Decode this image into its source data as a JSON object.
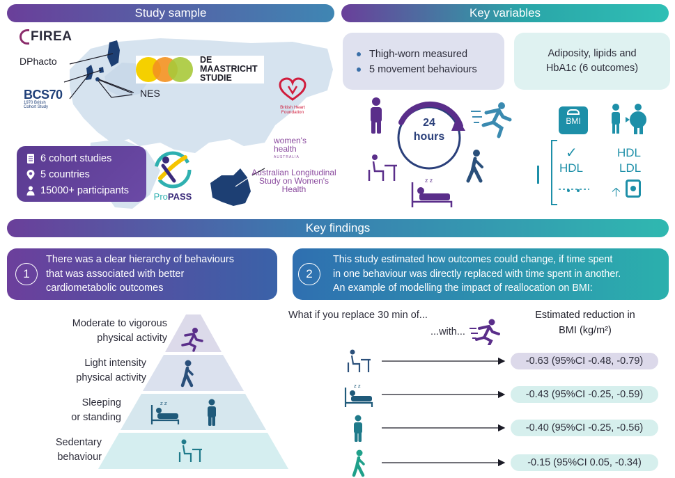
{
  "banners": {
    "study_sample": "Study sample",
    "key_variables": "Key variables",
    "key_findings": "Key findings"
  },
  "study_sample": {
    "cohort_labels": {
      "firea": "FIREA",
      "dphacto": "DPhacto",
      "bcs70": "BCS70",
      "bcs70_sub_1": "1970 British",
      "bcs70_sub_2": "Cohort Study",
      "nes": "NES",
      "maastricht_1": "DE",
      "maastricht_2": "MAASTRICHT",
      "maastricht_3": "STUDIE",
      "bhf_1": "British Heart",
      "bhf_2": "Foundation",
      "propass_pro": "Pro",
      "propass_pass": "PASS",
      "womens_health_1": "women's",
      "womens_health_2": "health",
      "womens_health_3": "AUSTRALIA",
      "alswh_1": "Australian Longitudinal",
      "alswh_2": "Study on Women's",
      "alswh_3": "Health"
    },
    "stats": [
      {
        "icon": "document-icon",
        "text": "6 cohort studies"
      },
      {
        "icon": "location-pin-icon",
        "text": "5 countries"
      },
      {
        "icon": "person-icon",
        "text": "15000+ participants"
      }
    ]
  },
  "key_variables": {
    "bullets": [
      "Thigh-worn measured",
      "5 movement behaviours"
    ],
    "outcomes_line1": "Adiposity, lipids and",
    "outcomes_line2": "HbA1c (6 outcomes)",
    "clock_line1": "24",
    "clock_line2": "hours",
    "bmi_label": "BMI",
    "hdl_label": "HDL",
    "hdl2_label": "HDL",
    "ldl_label": "LDL"
  },
  "findings": {
    "f1_number": "1",
    "f1_text": [
      "There was a clear hierarchy of behaviours",
      "that was associated with better",
      "cardiometabolic outcomes"
    ],
    "f2_number": "2",
    "f2_text": [
      "This study estimated how outcomes could change, if time spent",
      "in one behaviour was directly replaced with time spent in another.",
      "An example of modelling the impact of reallocation on BMI:"
    ]
  },
  "pyramid": {
    "levels": [
      {
        "line1": "Moderate to vigorous",
        "line2": "physical activity"
      },
      {
        "line1": "Light intensity",
        "line2": "physical activity"
      },
      {
        "line1": "Sleeping",
        "line2": "or standing"
      },
      {
        "line1": "Sedentary",
        "line2": "behaviour"
      }
    ]
  },
  "reallocation": {
    "question": "What if you replace 30 min of...",
    "with": "...with...",
    "estimate_head_1": "Estimated reduction in",
    "estimate_head_2": "BMI (kg/m²)",
    "rows": [
      {
        "behaviour": "sitting-icon",
        "result": "-0.63 (95%CI -0.48, -0.79)",
        "color": "#dcd9ea"
      },
      {
        "behaviour": "sleeping-icon",
        "result": "-0.43 (95%CI -0.25, -0.59)",
        "color": "#d6efed"
      },
      {
        "behaviour": "standing-icon",
        "result": "-0.40 (95%CI -0.25, -0.56)",
        "color": "#d6efed"
      },
      {
        "behaviour": "walking-icon",
        "result": "-0.15 (95%CI 0.05, -0.34)",
        "color": "#d6efed"
      }
    ]
  },
  "colors": {
    "purple": "#6a3f9a",
    "teal": "#2aa5a8",
    "map": "#d6e3ef",
    "map_highlight": "#1d3f73"
  }
}
